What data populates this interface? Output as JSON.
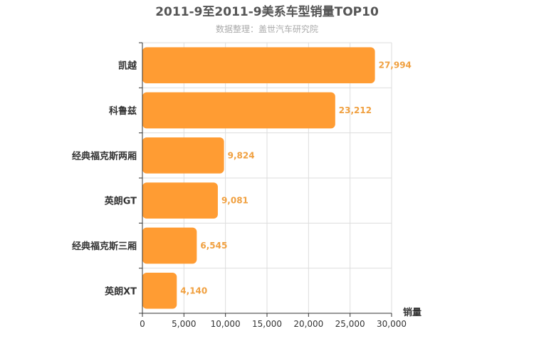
{
  "chart_data": {
    "type": "bar",
    "orientation": "horizontal",
    "title": "2011-9至2011-9美系车型销量TOP10",
    "subtitle": "数据整理：盖世汽车研究院",
    "categories": [
      "凯越",
      "科鲁兹",
      "经典福克斯两厢",
      "英朗GT",
      "经典福克斯三厢",
      "英朗XT"
    ],
    "values": [
      27994,
      23212,
      9824,
      9081,
      6545,
      4140
    ],
    "value_labels": [
      "27,994",
      "23,212",
      "9,824",
      "9,081",
      "6,545",
      "4,140"
    ],
    "xlabel": "销量",
    "ylabel": "",
    "xlim": [
      0,
      30000
    ],
    "xticks": [
      0,
      5000,
      10000,
      15000,
      20000,
      25000,
      30000
    ],
    "xtick_labels": [
      "0",
      "5,000",
      "10,000",
      "15,000",
      "20,000",
      "25,000",
      "30,000"
    ],
    "grid": true,
    "colors": {
      "bar": "#FF9C33",
      "value_label": "#F0A040",
      "grid": "#dddddd",
      "axis": "#333333"
    }
  }
}
